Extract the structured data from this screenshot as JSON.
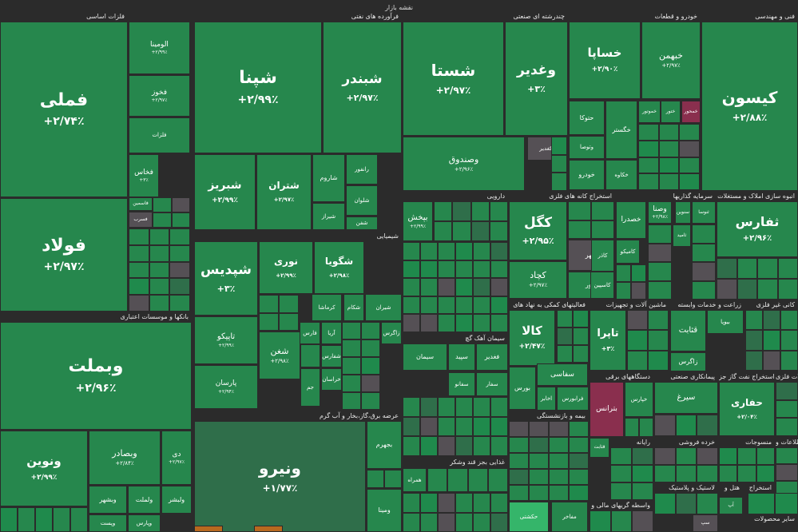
{
  "chart_data": {
    "type": "treemap",
    "title": "نقشه بازار",
    "colors": {
      "green_strong": "#1f8a4c",
      "green": "#26874d",
      "green_dark": "#2f6e4a",
      "neutral": "#555055",
      "red": "#8a2f4e",
      "bright": "#35b56a",
      "orange": "#b8691f",
      "background": "#2b2b2b"
    },
    "sectors": [
      {
        "name": "فلزات اساسی"
      },
      {
        "name": "فرآورده های نفتی"
      },
      {
        "name": "چندرشته ای صنعتی"
      },
      {
        "name": "خودرو و قطعات"
      },
      {
        "name": "فنی و مهندسی"
      },
      {
        "name": "بانکها و موسسات اعتباری"
      },
      {
        "name": "شیمیایی"
      },
      {
        "name": "عرضه برق،گاز،بخار و آب گرم"
      },
      {
        "name": "دارویی"
      },
      {
        "name": "استخراج کانه های فلزی"
      },
      {
        "name": "سرمایه گذاریها"
      },
      {
        "name": "انبوه سازی املاک و مستغلات"
      },
      {
        "name": "فعالیتهای کمکی به نهاد های"
      },
      {
        "name": "ماشین آلات و تجهیزات"
      },
      {
        "name": "زراعت و خدمات وابسته"
      },
      {
        "name": "کانی غیر فلزی"
      },
      {
        "name": "سیمان آهک گچ"
      },
      {
        "name": "دستگاههای برقی"
      },
      {
        "name": "پیمانکاری صنعتی"
      },
      {
        "name": "استخراج نفت گاز جز"
      },
      {
        "name": "محصولات فلزی"
      },
      {
        "name": "بیمه و بازنشستگی"
      },
      {
        "name": "رایانه"
      },
      {
        "name": "غذایی بجز قند وشکر"
      },
      {
        "name": "خرده فروشی"
      },
      {
        "name": "منسوجات"
      },
      {
        "name": "اطلاعات و"
      },
      {
        "name": "حمل و نقل انبارداری و ارتباطات"
      },
      {
        "name": "واسطه گریهای مالی و"
      },
      {
        "name": "لاستیک و پلاستیک"
      },
      {
        "name": "هتل و"
      },
      {
        "name": "استخراج"
      },
      {
        "name": "سایر محصولات"
      }
    ],
    "tiles": [
      {
        "name": "فملی",
        "value": "+۲/۷۴٪",
        "change": 2.74
      },
      {
        "name": "فولاد",
        "value": "+۲/۹۷٪",
        "change": 2.97
      },
      {
        "name": "فخاس",
        "value": "+۳٪",
        "change": 3.0
      },
      {
        "name": "فخوز",
        "value": "+۲/۹۷٪",
        "change": 2.97
      },
      {
        "name": "الومینا",
        "value": "+۲/۹۹٪",
        "change": 2.99
      },
      {
        "name": "شپنا",
        "value": "+۲/۹۹٪",
        "change": 2.99
      },
      {
        "name": "شبندر",
        "value": "+۲/۹۷٪",
        "change": 2.97
      },
      {
        "name": "شبریز",
        "value": "+۲/۹۹٪",
        "change": 2.99
      },
      {
        "name": "شتران",
        "value": "+۲/۹۷٪",
        "change": 2.97
      },
      {
        "name": "شستا",
        "value": "+۲/۹۷٪",
        "change": 2.97
      },
      {
        "name": "وغدیر",
        "value": "+۳٪",
        "change": 3.0
      },
      {
        "name": "وصندوق",
        "value": "+۲/۹۶٪",
        "change": 2.96
      },
      {
        "name": "خساپا",
        "value": "+۲/۹۰٪",
        "change": 2.9
      },
      {
        "name": "خبهمن",
        "value": "+۲/۹۷٪",
        "change": 2.97
      },
      {
        "name": "کیسون",
        "value": "+۲/۸۸٪",
        "change": 2.88
      },
      {
        "name": "وبملت",
        "value": "+۲/۹۶٪",
        "change": 2.96
      },
      {
        "name": "ونوین",
        "value": "+۲/۹۹٪",
        "change": 2.99
      },
      {
        "name": "وبصادر",
        "value": "+۲/۸۴٪",
        "change": 2.84
      },
      {
        "name": "شپدیس",
        "value": "+۳٪",
        "change": 3.0
      },
      {
        "name": "نوری",
        "value": "+۲/۹۹٪",
        "change": 2.99
      },
      {
        "name": "شگویا",
        "value": "+۲/۹۸٪",
        "change": 2.98
      },
      {
        "name": "تاپیکو",
        "value": "+۲/۹۹٪",
        "change": 2.99
      },
      {
        "name": "شغن",
        "value": "+۲/۹۸٪",
        "change": 2.98
      },
      {
        "name": "پارسان",
        "value": "+۲/۹۴٪",
        "change": 2.94
      },
      {
        "name": "ونیرو",
        "value": "+۱/۷۷٪",
        "change": 1.77
      },
      {
        "name": "کگل",
        "value": "+۲/۹۵٪",
        "change": 2.95
      },
      {
        "name": "کچاد",
        "value": "+۲/۹۷٪",
        "change": 2.97
      },
      {
        "name": "ثفارس",
        "value": "+۲/۹۶٪",
        "change": 2.96
      },
      {
        "name": "کالا",
        "value": "+۲/۴۷٪",
        "change": 2.47
      },
      {
        "name": "تاپرا",
        "value": "+۳٪",
        "change": 3.0
      },
      {
        "name": "حفاری",
        "value": "+۲/۰۴٪",
        "change": 2.04
      },
      {
        "name": "بپخش",
        "value": "+۲/۹۹٪",
        "change": 2.99
      },
      {
        "name": "وصنا",
        "value": "+۲/۹۸٪",
        "change": 2.98
      },
      {
        "name": "خودرو",
        "value": "",
        "change": null
      },
      {
        "name": "وبشهر",
        "value": "",
        "change": null
      },
      {
        "name": "دی",
        "value": "+۲/۹۷٪",
        "change": 2.97
      },
      {
        "name": "ولبشر",
        "value": "",
        "change": null
      },
      {
        "name": "ولملت",
        "value": "",
        "change": null
      },
      {
        "name": "فارس",
        "value": "",
        "change": null
      },
      {
        "name": "فاسمین",
        "value": "",
        "change": null
      },
      {
        "name": "فلزات",
        "value": "",
        "change": null
      },
      {
        "name": "فسرب",
        "value": "",
        "change": null
      },
      {
        "name": "شاروم",
        "value": "",
        "change": null
      },
      {
        "name": "رانفور",
        "value": "",
        "change": null
      },
      {
        "name": "شیراز",
        "value": "",
        "change": null
      },
      {
        "name": "شلوان",
        "value": "",
        "change": null
      },
      {
        "name": "شفن",
        "value": "",
        "change": null
      },
      {
        "name": "زاگرس",
        "value": "",
        "change": null
      },
      {
        "name": "شیران",
        "value": "",
        "change": null
      },
      {
        "name": "شکام",
        "value": "",
        "change": null
      },
      {
        "name": "کرماشا",
        "value": "",
        "change": null
      },
      {
        "name": "آریا",
        "value": "",
        "change": null
      },
      {
        "name": "شفارس",
        "value": "",
        "change": null
      },
      {
        "name": "خراسان",
        "value": "",
        "change": null
      },
      {
        "name": "جم",
        "value": "",
        "change": null
      },
      {
        "name": "بجهرم",
        "value": "",
        "change": null
      },
      {
        "name": "ومینا",
        "value": "",
        "change": null
      },
      {
        "name": "وکغدیر",
        "value": "",
        "change": null
      },
      {
        "name": "سپ",
        "value": "",
        "change": null
      },
      {
        "name": "آپ",
        "value": "",
        "change": null
      },
      {
        "name": "حکشتی",
        "value": "",
        "change": null
      },
      {
        "name": "قثابت",
        "value": "",
        "change": null
      },
      {
        "name": "وتوصا",
        "value": "",
        "change": null
      },
      {
        "name": "حتوکا",
        "value": "",
        "change": null
      },
      {
        "name": "خکاوه",
        "value": "",
        "change": null
      },
      {
        "name": "خگستر",
        "value": "",
        "change": null
      },
      {
        "name": "خموتور",
        "value": "",
        "change": null
      },
      {
        "name": "ختور",
        "value": "",
        "change": null
      },
      {
        "name": "خمحور",
        "value": "",
        "change": null
      },
      {
        "name": "سنوین",
        "value": "",
        "change": null
      },
      {
        "name": "ثامید",
        "value": "",
        "change": null
      },
      {
        "name": "ثنوسا",
        "value": "",
        "change": null
      },
      {
        "name": "کامیکو",
        "value": "",
        "change": null
      },
      {
        "name": "کنور",
        "value": "",
        "change": null
      },
      {
        "name": "کلهر",
        "value": "",
        "change": null
      },
      {
        "name": "خپارس",
        "value": "",
        "change": null
      },
      {
        "name": "بترانس",
        "value": "",
        "change": null
      },
      {
        "name": "بیوپا",
        "value": "",
        "change": null
      },
      {
        "name": "قثابت",
        "value": "",
        "change": null
      },
      {
        "name": "زاگرس",
        "value": "",
        "change": null
      },
      {
        "name": "سیرغ",
        "value": "",
        "change": null
      },
      {
        "name": "خصدرا",
        "value": "",
        "change": null
      },
      {
        "name": "کاذر",
        "value": "",
        "change": null
      },
      {
        "name": "کاسپین",
        "value": "",
        "change": null
      },
      {
        "name": "فغدیر",
        "value": "",
        "change": null
      },
      {
        "name": "سپید",
        "value": "",
        "change": null
      },
      {
        "name": "سیمان",
        "value": "",
        "change": null
      },
      {
        "name": "سفار",
        "value": "",
        "change": null
      },
      {
        "name": "سفانو",
        "value": "",
        "change": null
      },
      {
        "name": "سفاسی",
        "value": "",
        "change": null
      },
      {
        "name": "بورس",
        "value": "",
        "change": null
      },
      {
        "name": "فرابورس",
        "value": "",
        "change": null
      },
      {
        "name": "اخابر",
        "value": "",
        "change": null
      },
      {
        "name": "همراه",
        "value": "",
        "change": null
      },
      {
        "name": "مفاخر",
        "value": "",
        "change": null
      },
      {
        "name": "وپست",
        "value": "",
        "change": null
      },
      {
        "name": "وپارس",
        "value": "",
        "change": null
      }
    ]
  }
}
